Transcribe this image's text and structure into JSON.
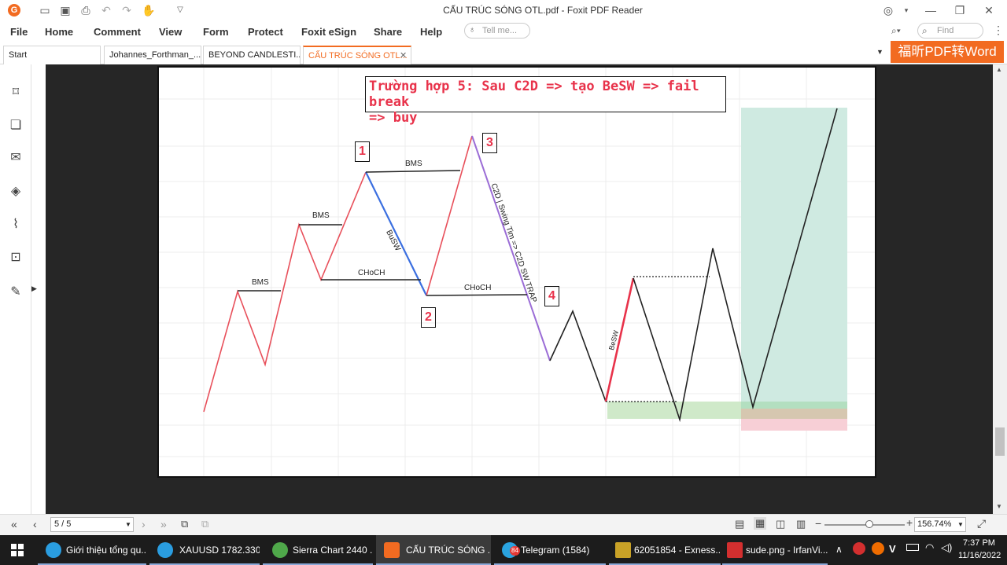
{
  "window": {
    "title": "CẤU TRÚC SÓNG OTL.pdf - Foxit PDF Reader"
  },
  "menu": {
    "items": [
      "File",
      "Home",
      "Comment",
      "View",
      "Form",
      "Protect",
      "Foxit eSign",
      "Share",
      "Help"
    ],
    "tell_me_placeholder": "Tell me...",
    "find_placeholder": "Find"
  },
  "tabs": [
    {
      "label": "Start"
    },
    {
      "label": "Johannes_Forthman_..."
    },
    {
      "label": "BEYOND CANDLESTI..."
    },
    {
      "label": "CẤU TRÚC SÓNG OTL...",
      "active": true
    }
  ],
  "promo": {
    "label": "福昕PDF转Word",
    "color": "#f26b21"
  },
  "page_content": {
    "title_line1": "Trường hợp 5: Sau C2D => tạo BeSW => fail break",
    "title_line2": "=> buy",
    "labels": {
      "bms1": "BMS",
      "bms2": "BMS",
      "bms3": "BMS",
      "choch1": "CHoCH",
      "choch2": "CHoCH",
      "busw": "BuSW",
      "c2d": "C2D | Swing Tim => C2D SW TRAP",
      "besw": "BeSW",
      "n1": "1",
      "n2": "2",
      "n3": "3",
      "n4": "4"
    },
    "colors": {
      "red": "#e8505b",
      "blue": "#3b6fe0",
      "purple": "#9b6dd6",
      "green_zone": "#a8ddc9",
      "accent_red": "#e8324a"
    }
  },
  "status": {
    "page_field": "5 / 5",
    "zoom": "156.74%"
  },
  "taskbar": {
    "items": [
      {
        "label": "Giới thiệu tổng qu..."
      },
      {
        "label": "XAUUSD 1782.330 ..."
      },
      {
        "label": "Sierra Chart 2440 ..."
      },
      {
        "label": "CẤU TRÚC SÓNG ..."
      },
      {
        "label": "Telegram (1584)"
      },
      {
        "label": "62051854 - Exness..."
      },
      {
        "label": "sude.png - IrfanVi..."
      }
    ],
    "telegram_badge": "84",
    "time": "7:37 PM",
    "date": "11/16/2022",
    "tray_letter": "V"
  }
}
